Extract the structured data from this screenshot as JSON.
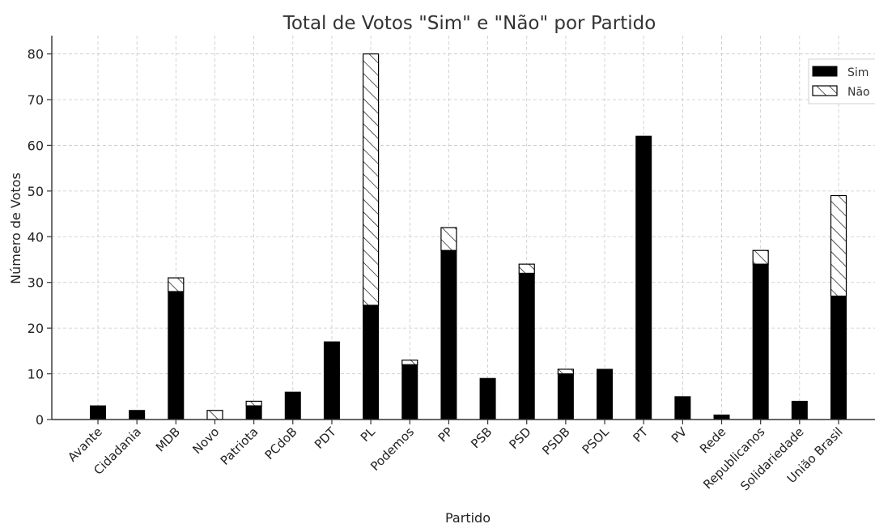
{
  "chart_data": {
    "type": "bar",
    "stacked": true,
    "title": "Total de Votos \"Sim\" e \"Não\" por Partido",
    "xlabel": "Partido",
    "ylabel": "Número de Votos",
    "ylim": [
      0,
      84
    ],
    "yticks": [
      0,
      10,
      20,
      30,
      40,
      50,
      60,
      70,
      80
    ],
    "grid": true,
    "legend_position": "top-right",
    "categories": [
      "Avante",
      "Cidadania",
      "MDB",
      "Novo",
      "Patriota",
      "PCdoB",
      "PDT",
      "PL",
      "Podemos",
      "PP",
      "PSB",
      "PSD",
      "PSDB",
      "PSOL",
      "PT",
      "PV",
      "Rede",
      "Republicanos",
      "Solidariedade",
      "União Brasil"
    ],
    "series": [
      {
        "name": "Sim",
        "color": "#000000",
        "pattern": "solid",
        "values": [
          3,
          2,
          28,
          0,
          3,
          6,
          17,
          25,
          12,
          37,
          9,
          32,
          10,
          11,
          62,
          5,
          1,
          34,
          4,
          27
        ]
      },
      {
        "name": "Não",
        "color": "#ffffff",
        "pattern": "hatch",
        "values": [
          0,
          0,
          3,
          2,
          1,
          0,
          0,
          55,
          1,
          5,
          0,
          2,
          1,
          0,
          0,
          0,
          0,
          3,
          0,
          22
        ]
      }
    ]
  }
}
